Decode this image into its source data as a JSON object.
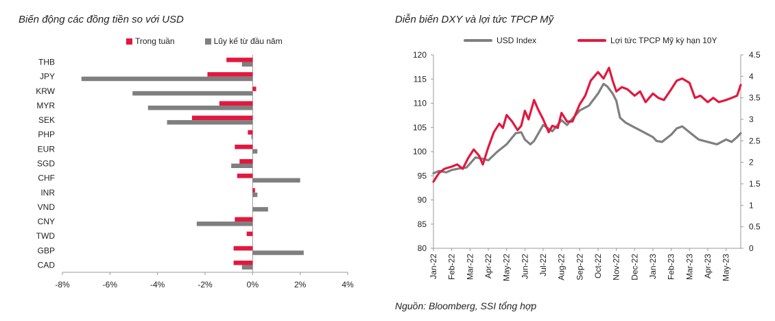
{
  "colors": {
    "red": "#E3173E",
    "gray": "#7F7F7F"
  },
  "chart_data": [
    {
      "type": "bar",
      "orientation": "horizontal",
      "title": "Biến động các đồng tiền so với USD",
      "categories": [
        "THB",
        "JPY",
        "KRW",
        "MYR",
        "SEK",
        "PHP",
        "EUR",
        "SGD",
        "CHF",
        "INR",
        "VND",
        "CNY",
        "TWD",
        "GBP",
        "CAD"
      ],
      "series": [
        {
          "name": "Trong tuần",
          "color": "#E3173E",
          "values": [
            -1.1,
            -1.9,
            0.15,
            -1.4,
            -2.55,
            -0.2,
            -0.75,
            -0.55,
            -0.65,
            0.1,
            0.0,
            -0.75,
            -0.25,
            -0.8,
            -0.8
          ]
        },
        {
          "name": "Lũy kế từ đầu năm",
          "color": "#7F7F7F",
          "values": [
            -0.45,
            -7.2,
            -5.05,
            -4.4,
            -3.6,
            -0.05,
            0.2,
            -0.9,
            2.0,
            0.2,
            0.65,
            -2.35,
            0.0,
            2.15,
            -0.45
          ]
        }
      ],
      "xlim": [
        -8,
        4
      ],
      "xticks": [
        -8,
        -6,
        -4,
        -2,
        0,
        2,
        4
      ],
      "xtick_labels": [
        "-8%",
        "-6%",
        "-4%",
        "-2%",
        "0%",
        "2%",
        "4%"
      ]
    },
    {
      "type": "line",
      "title": "Diễn biến DXY và lợi tức TPCP Mỹ",
      "source": "Nguồn: Bloomberg, SSI tổng hợp",
      "x_labels": [
        "Jan-22",
        "Feb-22",
        "Mar-22",
        "Apr-22",
        "May-22",
        "Jun-22",
        "Jul-22",
        "Aug-22",
        "Sep-22",
        "Oct-22",
        "Nov-22",
        "Dec-22",
        "Jan-23",
        "Feb-23",
        "Mar-23",
        "Apr-23",
        "May-23"
      ],
      "x_range": [
        0,
        16.8
      ],
      "ylim_left": [
        80,
        120
      ],
      "yticks_left": [
        80,
        85,
        90,
        95,
        100,
        105,
        110,
        115,
        120
      ],
      "ylim_right": [
        0,
        4.5
      ],
      "yticks_right": [
        0,
        0.5,
        1,
        1.5,
        2,
        2.5,
        3,
        3.5,
        4,
        4.5
      ],
      "yticks_right_labels": [
        "0",
        "0.5",
        "1",
        "1.5",
        "2",
        "2.5",
        "3",
        "3.5",
        "4",
        "4.5"
      ],
      "series": [
        {
          "name": "USD Index",
          "axis": "left",
          "color": "#7F7F7F",
          "x": [
            0,
            0.3,
            0.7,
            1.0,
            1.4,
            1.8,
            2.0,
            2.3,
            2.7,
            3.0,
            3.5,
            4.0,
            4.5,
            4.8,
            5.0,
            5.3,
            5.5,
            5.8,
            6.0,
            6.5,
            7.0,
            7.3,
            7.6,
            8.0,
            8.5,
            9.0,
            9.3,
            9.5,
            9.8,
            10.0,
            10.2,
            10.5,
            11.0,
            11.5,
            12.0,
            12.2,
            12.5,
            13.0,
            13.3,
            13.6,
            14.0,
            14.5,
            15.0,
            15.5,
            16.0,
            16.3,
            16.6,
            16.8
          ],
          "values": [
            95.5,
            96.0,
            95.7,
            96.2,
            96.5,
            96.7,
            97.5,
            98.8,
            98.5,
            98.2,
            100.0,
            101.5,
            103.8,
            104.0,
            102.5,
            101.5,
            102.2,
            104.2,
            105.5,
            104.2,
            106.5,
            105.5,
            106.8,
            108.5,
            109.5,
            112.0,
            114.0,
            113.5,
            112.0,
            110.5,
            107.0,
            106.0,
            105.0,
            104.0,
            103.0,
            102.2,
            102.0,
            103.5,
            104.8,
            105.2,
            104.0,
            102.5,
            102.0,
            101.5,
            102.5,
            102.0,
            103.0,
            103.8
          ]
        },
        {
          "name": "Lợi tức TPCP Mỹ kỳ hạn 10Y",
          "axis": "right",
          "color": "#E3173E",
          "x": [
            0,
            0.3,
            0.6,
            1.0,
            1.3,
            1.6,
            1.9,
            2.2,
            2.5,
            2.7,
            3.0,
            3.3,
            3.6,
            3.8,
            4.0,
            4.3,
            4.6,
            4.8,
            5.0,
            5.2,
            5.5,
            5.7,
            6.0,
            6.3,
            6.5,
            6.8,
            7.0,
            7.3,
            7.6,
            8.0,
            8.3,
            8.6,
            9.0,
            9.3,
            9.6,
            9.8,
            10.0,
            10.3,
            10.6,
            11.0,
            11.3,
            11.6,
            12.0,
            12.3,
            12.6,
            13.0,
            13.3,
            13.6,
            14.0,
            14.3,
            14.6,
            15.0,
            15.3,
            15.6,
            16.0,
            16.3,
            16.6,
            16.8
          ],
          "values": [
            1.55,
            1.75,
            1.85,
            1.9,
            1.95,
            1.85,
            2.1,
            2.3,
            2.15,
            1.95,
            2.35,
            2.7,
            2.9,
            2.8,
            3.1,
            2.95,
            2.75,
            2.85,
            3.2,
            3.0,
            3.45,
            3.25,
            3.0,
            2.7,
            2.85,
            2.8,
            3.15,
            2.95,
            2.95,
            3.35,
            3.55,
            3.9,
            4.1,
            3.95,
            4.2,
            3.9,
            3.65,
            3.75,
            3.7,
            3.55,
            3.65,
            3.4,
            3.6,
            3.5,
            3.45,
            3.7,
            3.9,
            3.95,
            3.85,
            3.5,
            3.55,
            3.4,
            3.5,
            3.4,
            3.45,
            3.5,
            3.55,
            3.8
          ]
        }
      ]
    }
  ]
}
